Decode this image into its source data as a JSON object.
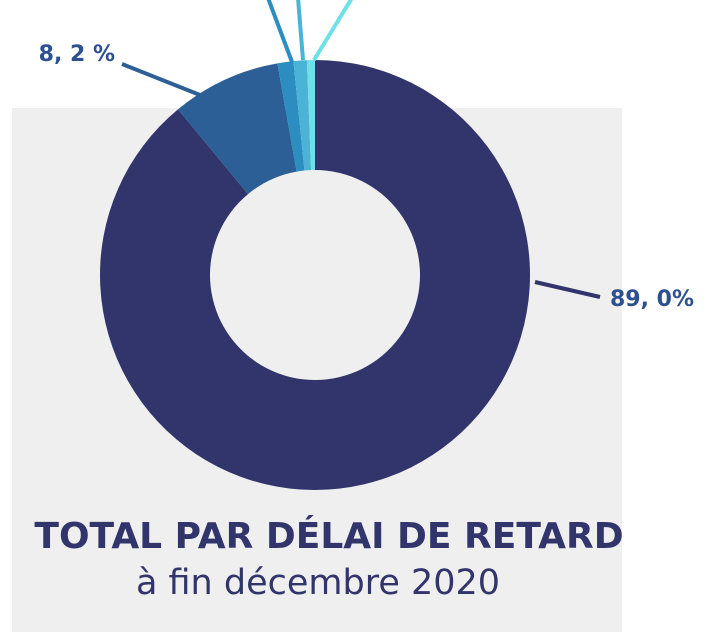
{
  "chart_data": {
    "type": "pie",
    "donut": true,
    "title": "TOTAL PAR DÉLAI DE RETARD",
    "subtitle": "à fin décembre 2020",
    "values": [
      89.0,
      8.2,
      1.2,
      1.0,
      0.6
    ],
    "value_labels": [
      "89, 0%",
      "8, 2 %",
      null,
      null,
      null
    ],
    "colors": [
      "#31356b",
      "#2c5f95",
      "#2b8dc0",
      "#4bb3d6",
      "#6ee0ea"
    ]
  }
}
